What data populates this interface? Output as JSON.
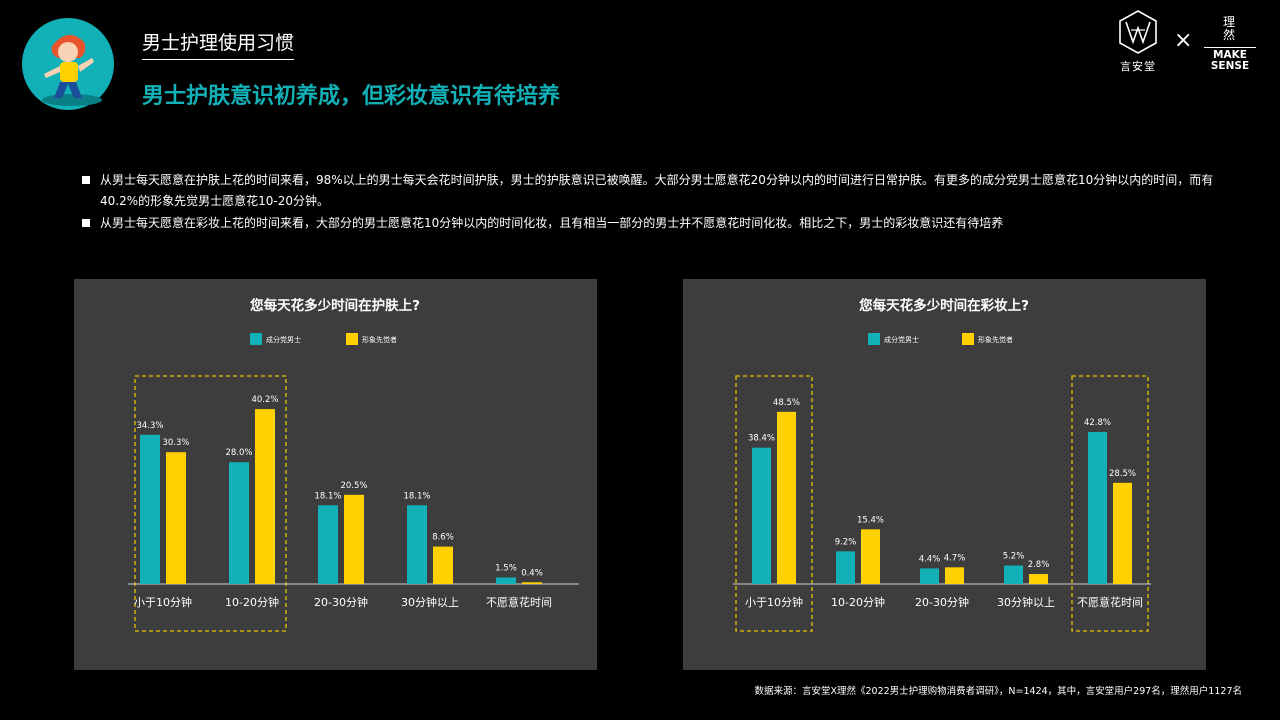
{
  "header": {
    "section_title": "男士护理使用习惯",
    "headline": "男士护肤意识初养成，但彩妆意识有待培养"
  },
  "logos": {
    "left_brand": "言安堂",
    "cross": "×",
    "right_brand_cn_line1": "理",
    "right_brand_cn_line2": "然",
    "right_brand_en_line1": "MAKE",
    "right_brand_en_line2": "SENSE"
  },
  "bullets": [
    "从男士每天愿意在护肤上花的时间来看，98%以上的男士每天会花时间护肤，男士的护肤意识已被唤醒。大部分男士愿意花20分钟以内的时间进行日常护肤。有更多的成分党男士愿意花10分钟以内的时间，而有40.2%的形象先觉男士愿意花10-20分钟。",
    "从男士每天愿意在彩妆上花的时间来看，大部分的男士愿意花10分钟以内的时间化妆，且有相当一部分的男士并不愿意花时间化妆。相比之下，男士的彩妆意识还有待培养"
  ],
  "colors": {
    "series1": "#12b0b7",
    "series2": "#ffd100",
    "highlight": "#e9c300",
    "headline": "#12b0b7",
    "panel": "#3d3d3d"
  },
  "chart_data": [
    {
      "type": "bar",
      "title": "您每天花多少时间在护肤上?",
      "categories": [
        "小于10分钟",
        "10-20分钟",
        "20-30分钟",
        "30分钟以上",
        "不愿意花时间"
      ],
      "series": [
        {
          "name": "成分党男士",
          "values": [
            34.3,
            28.0,
            18.1,
            18.1,
            1.5
          ],
          "labels": [
            "34.3%",
            "28.0%",
            "18.1%",
            "18.1%",
            "1.5%"
          ]
        },
        {
          "name": "形象先觉者",
          "values": [
            30.3,
            40.2,
            20.5,
            8.6,
            0.4
          ],
          "labels": [
            "30.3%",
            "40.2%",
            "20.5%",
            "8.6%",
            "0.4%"
          ]
        }
      ],
      "ylim": [
        0,
        45
      ],
      "legend": "top-center",
      "highlighted_categories": [
        "小于10分钟",
        "10-20分钟"
      ],
      "grid": false
    },
    {
      "type": "bar",
      "title": "您每天花多少时间在彩妆上?",
      "categories": [
        "小于10分钟",
        "10-20分钟",
        "20-30分钟",
        "30分钟以上",
        "不愿意花时间"
      ],
      "series": [
        {
          "name": "成分党男士",
          "values": [
            38.4,
            9.2,
            4.4,
            5.2,
            42.8
          ],
          "labels": [
            "38.4%",
            "9.2%",
            "4.4%",
            "5.2%",
            "42.8%"
          ]
        },
        {
          "name": "形象先觉者",
          "values": [
            48.5,
            15.4,
            4.7,
            2.8,
            28.5
          ],
          "labels": [
            "48.5%",
            "15.4%",
            "4.7%",
            "2.8%",
            "28.5%"
          ]
        }
      ],
      "ylim": [
        0,
        55
      ],
      "legend": "top-center",
      "highlighted_categories": [
        "小于10分钟",
        "不愿意花时间"
      ],
      "grid": false
    }
  ],
  "footer": {
    "source": "数据来源：言安堂X理然《2022男士护理购物消费者调研》，N=1424，其中，言安堂用户297名，理然用户1127名"
  }
}
